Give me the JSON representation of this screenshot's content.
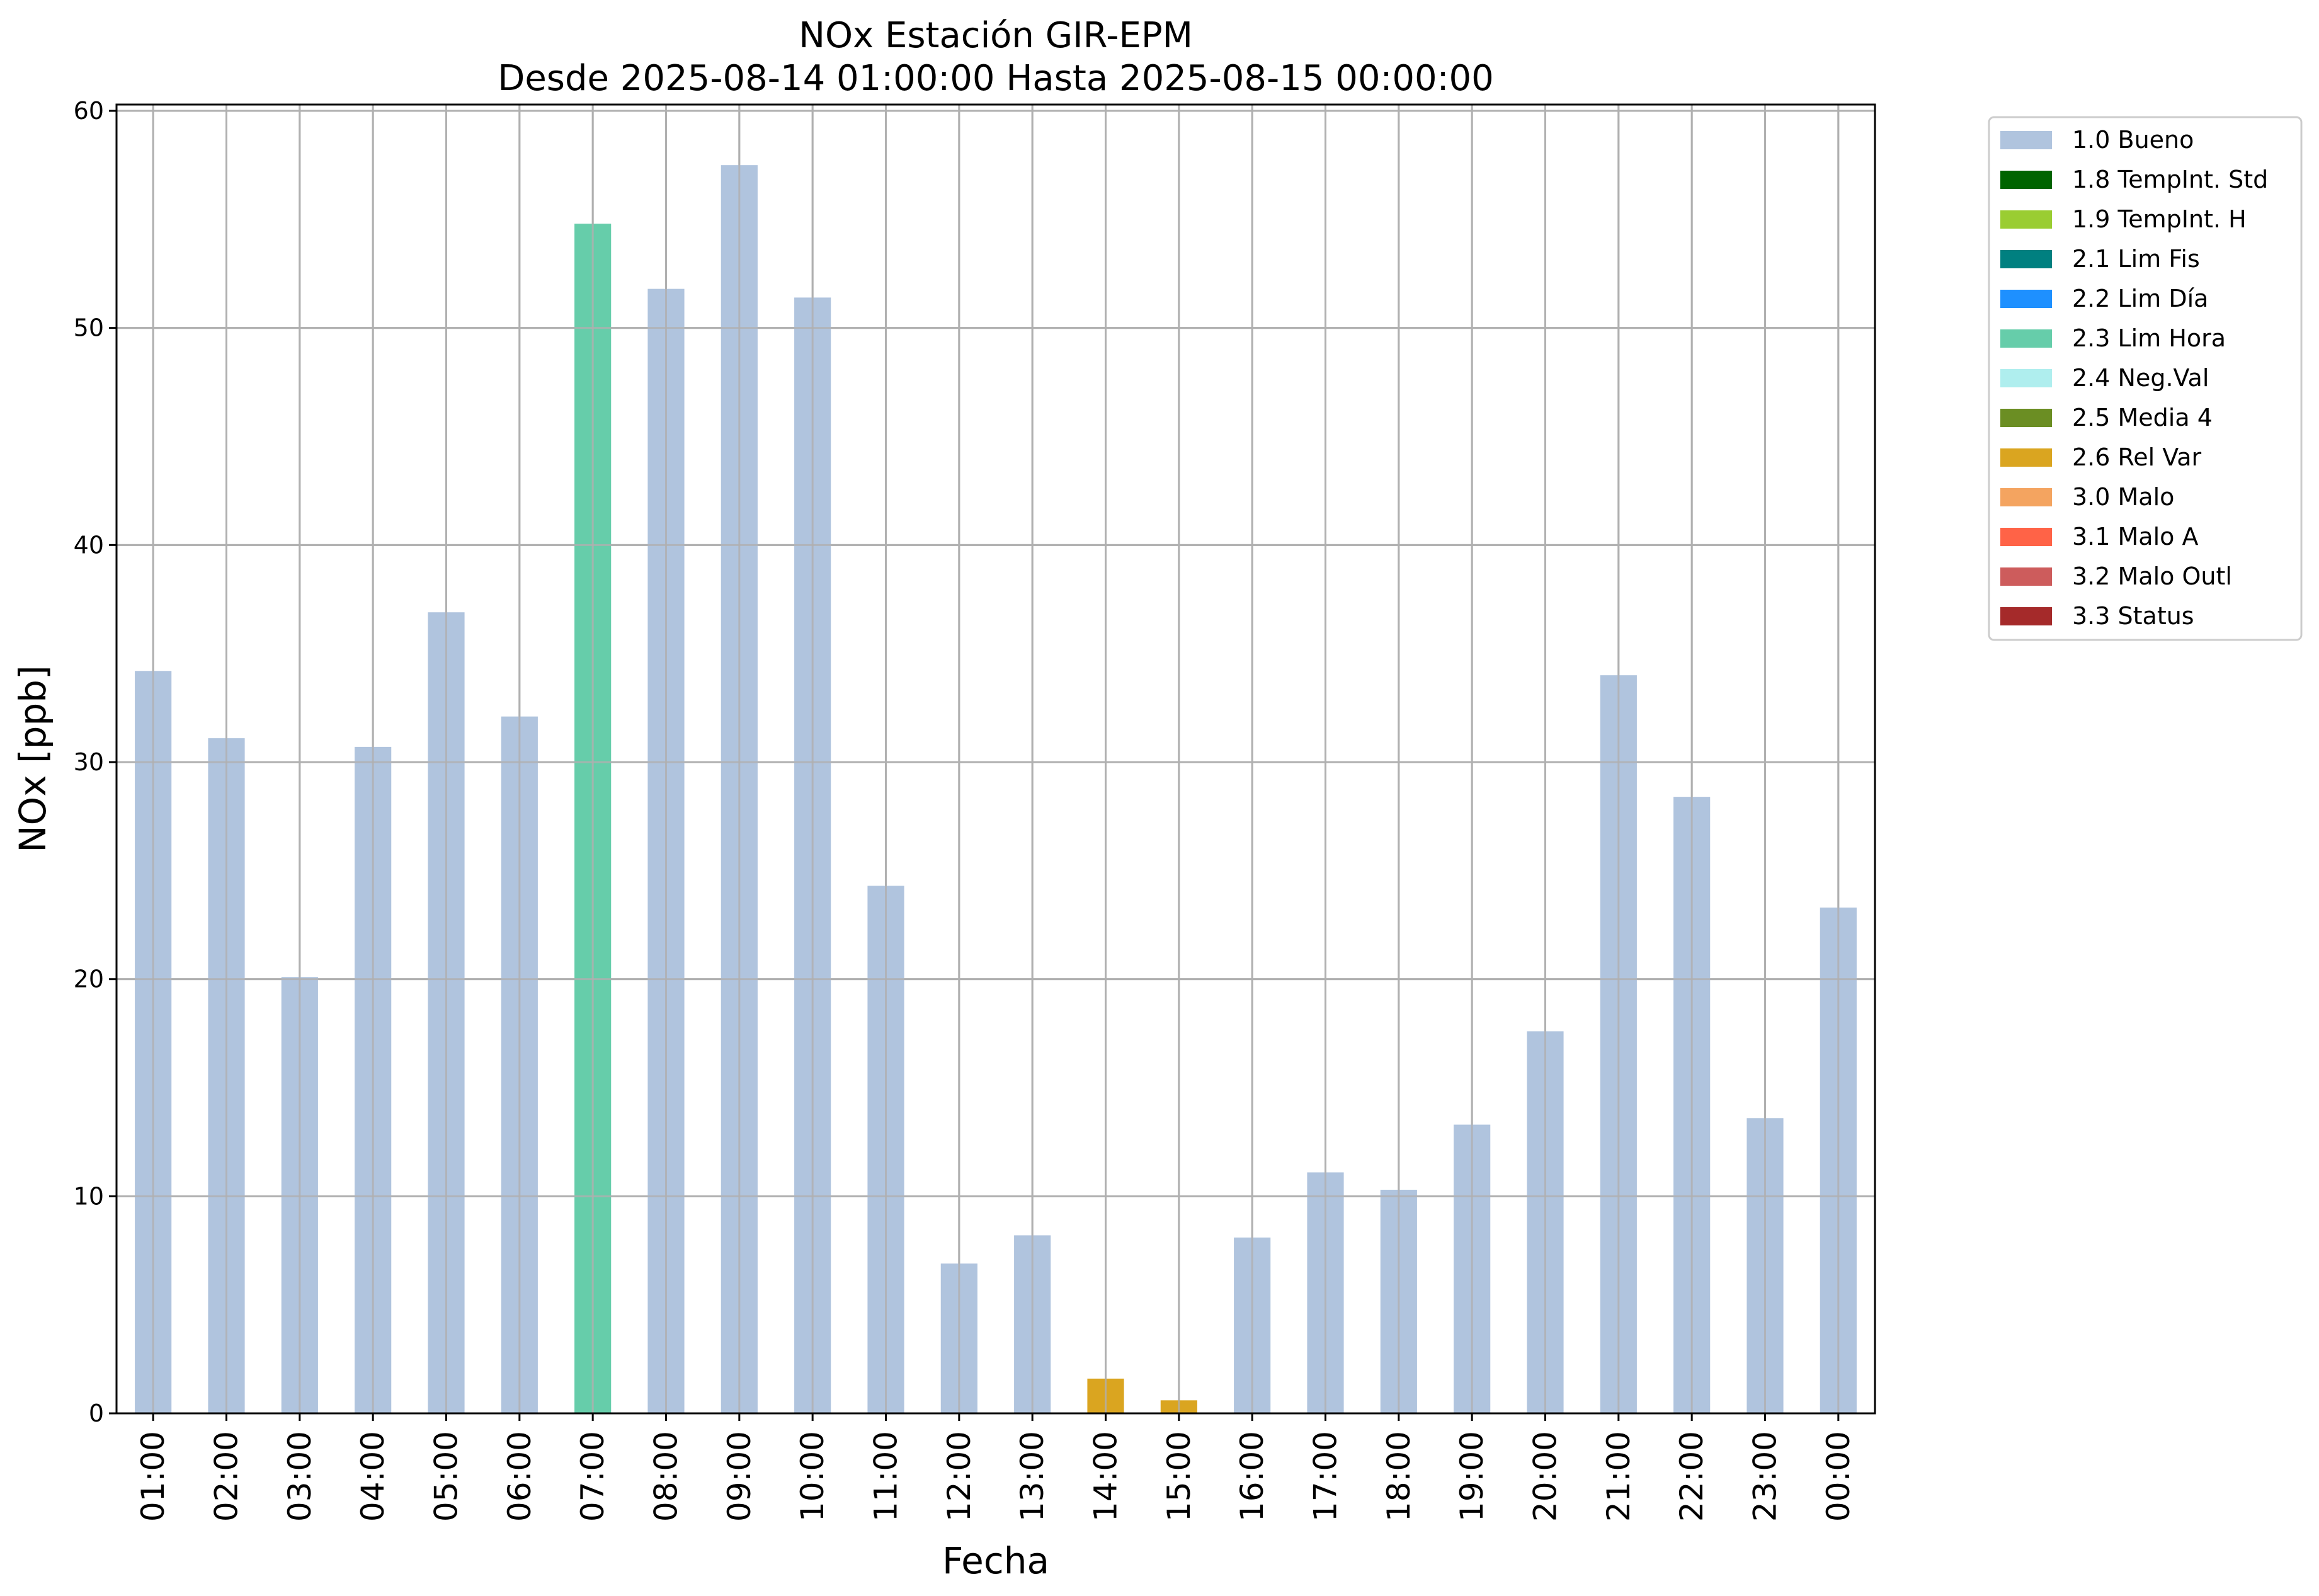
{
  "chart_data": {
    "type": "bar",
    "title": "NOx Estación GIR-EPM",
    "subtitle": "Desde 2025-08-14 01:00:00 Hasta 2025-08-15 00:00:00",
    "xlabel": "Fecha",
    "ylabel": "NOx [ppb]",
    "ylim": [
      0,
      60
    ],
    "yticks": [
      0,
      10,
      20,
      30,
      40,
      50,
      60
    ],
    "grid": true,
    "legend_position": "outside-top-right",
    "categories": [
      "01:00",
      "02:00",
      "03:00",
      "04:00",
      "05:00",
      "06:00",
      "07:00",
      "08:00",
      "09:00",
      "10:00",
      "11:00",
      "12:00",
      "13:00",
      "14:00",
      "15:00",
      "16:00",
      "17:00",
      "18:00",
      "19:00",
      "20:00",
      "21:00",
      "22:00",
      "23:00",
      "00:00"
    ],
    "values": [
      34.2,
      31.1,
      20.1,
      30.7,
      36.9,
      32.1,
      54.8,
      51.8,
      57.5,
      51.4,
      24.3,
      6.9,
      8.2,
      1.6,
      0.6,
      8.1,
      11.1,
      10.3,
      13.3,
      17.6,
      34.0,
      28.4,
      13.6,
      23.3
    ],
    "flags": [
      "1.0 Bueno",
      "1.0 Bueno",
      "1.0 Bueno",
      "1.0 Bueno",
      "1.0 Bueno",
      "1.0 Bueno",
      "2.3 Lim Hora",
      "1.0 Bueno",
      "1.0 Bueno",
      "1.0 Bueno",
      "1.0 Bueno",
      "1.0 Bueno",
      "1.0 Bueno",
      "2.6 Rel Var",
      "2.6 Rel Var",
      "1.0 Bueno",
      "1.0 Bueno",
      "1.0 Bueno",
      "1.0 Bueno",
      "1.0 Bueno",
      "1.0 Bueno",
      "1.0 Bueno",
      "1.0 Bueno",
      "1.0 Bueno"
    ],
    "legend": [
      {
        "label": "1.0 Bueno",
        "color": "#b0c4de"
      },
      {
        "label": "1.8 TempInt. Std",
        "color": "#006400"
      },
      {
        "label": "1.9 TempInt. H",
        "color": "#9acd32"
      },
      {
        "label": "2.1 Lim Fis",
        "color": "#008080"
      },
      {
        "label": "2.2 Lim Día",
        "color": "#1e90ff"
      },
      {
        "label": "2.3 Lim Hora",
        "color": "#66cdaa"
      },
      {
        "label": "2.4 Neg.Val",
        "color": "#afeeee"
      },
      {
        "label": "2.5 Media 4",
        "color": "#6b8e23"
      },
      {
        "label": "2.6 Rel Var",
        "color": "#daa520"
      },
      {
        "label": "3.0 Malo",
        "color": "#f4a460"
      },
      {
        "label": "3.1 Malo A",
        "color": "#ff6347"
      },
      {
        "label": "3.2 Malo Outl",
        "color": "#cd5c5c"
      },
      {
        "label": "3.3 Status",
        "color": "#a52a2a"
      }
    ]
  }
}
